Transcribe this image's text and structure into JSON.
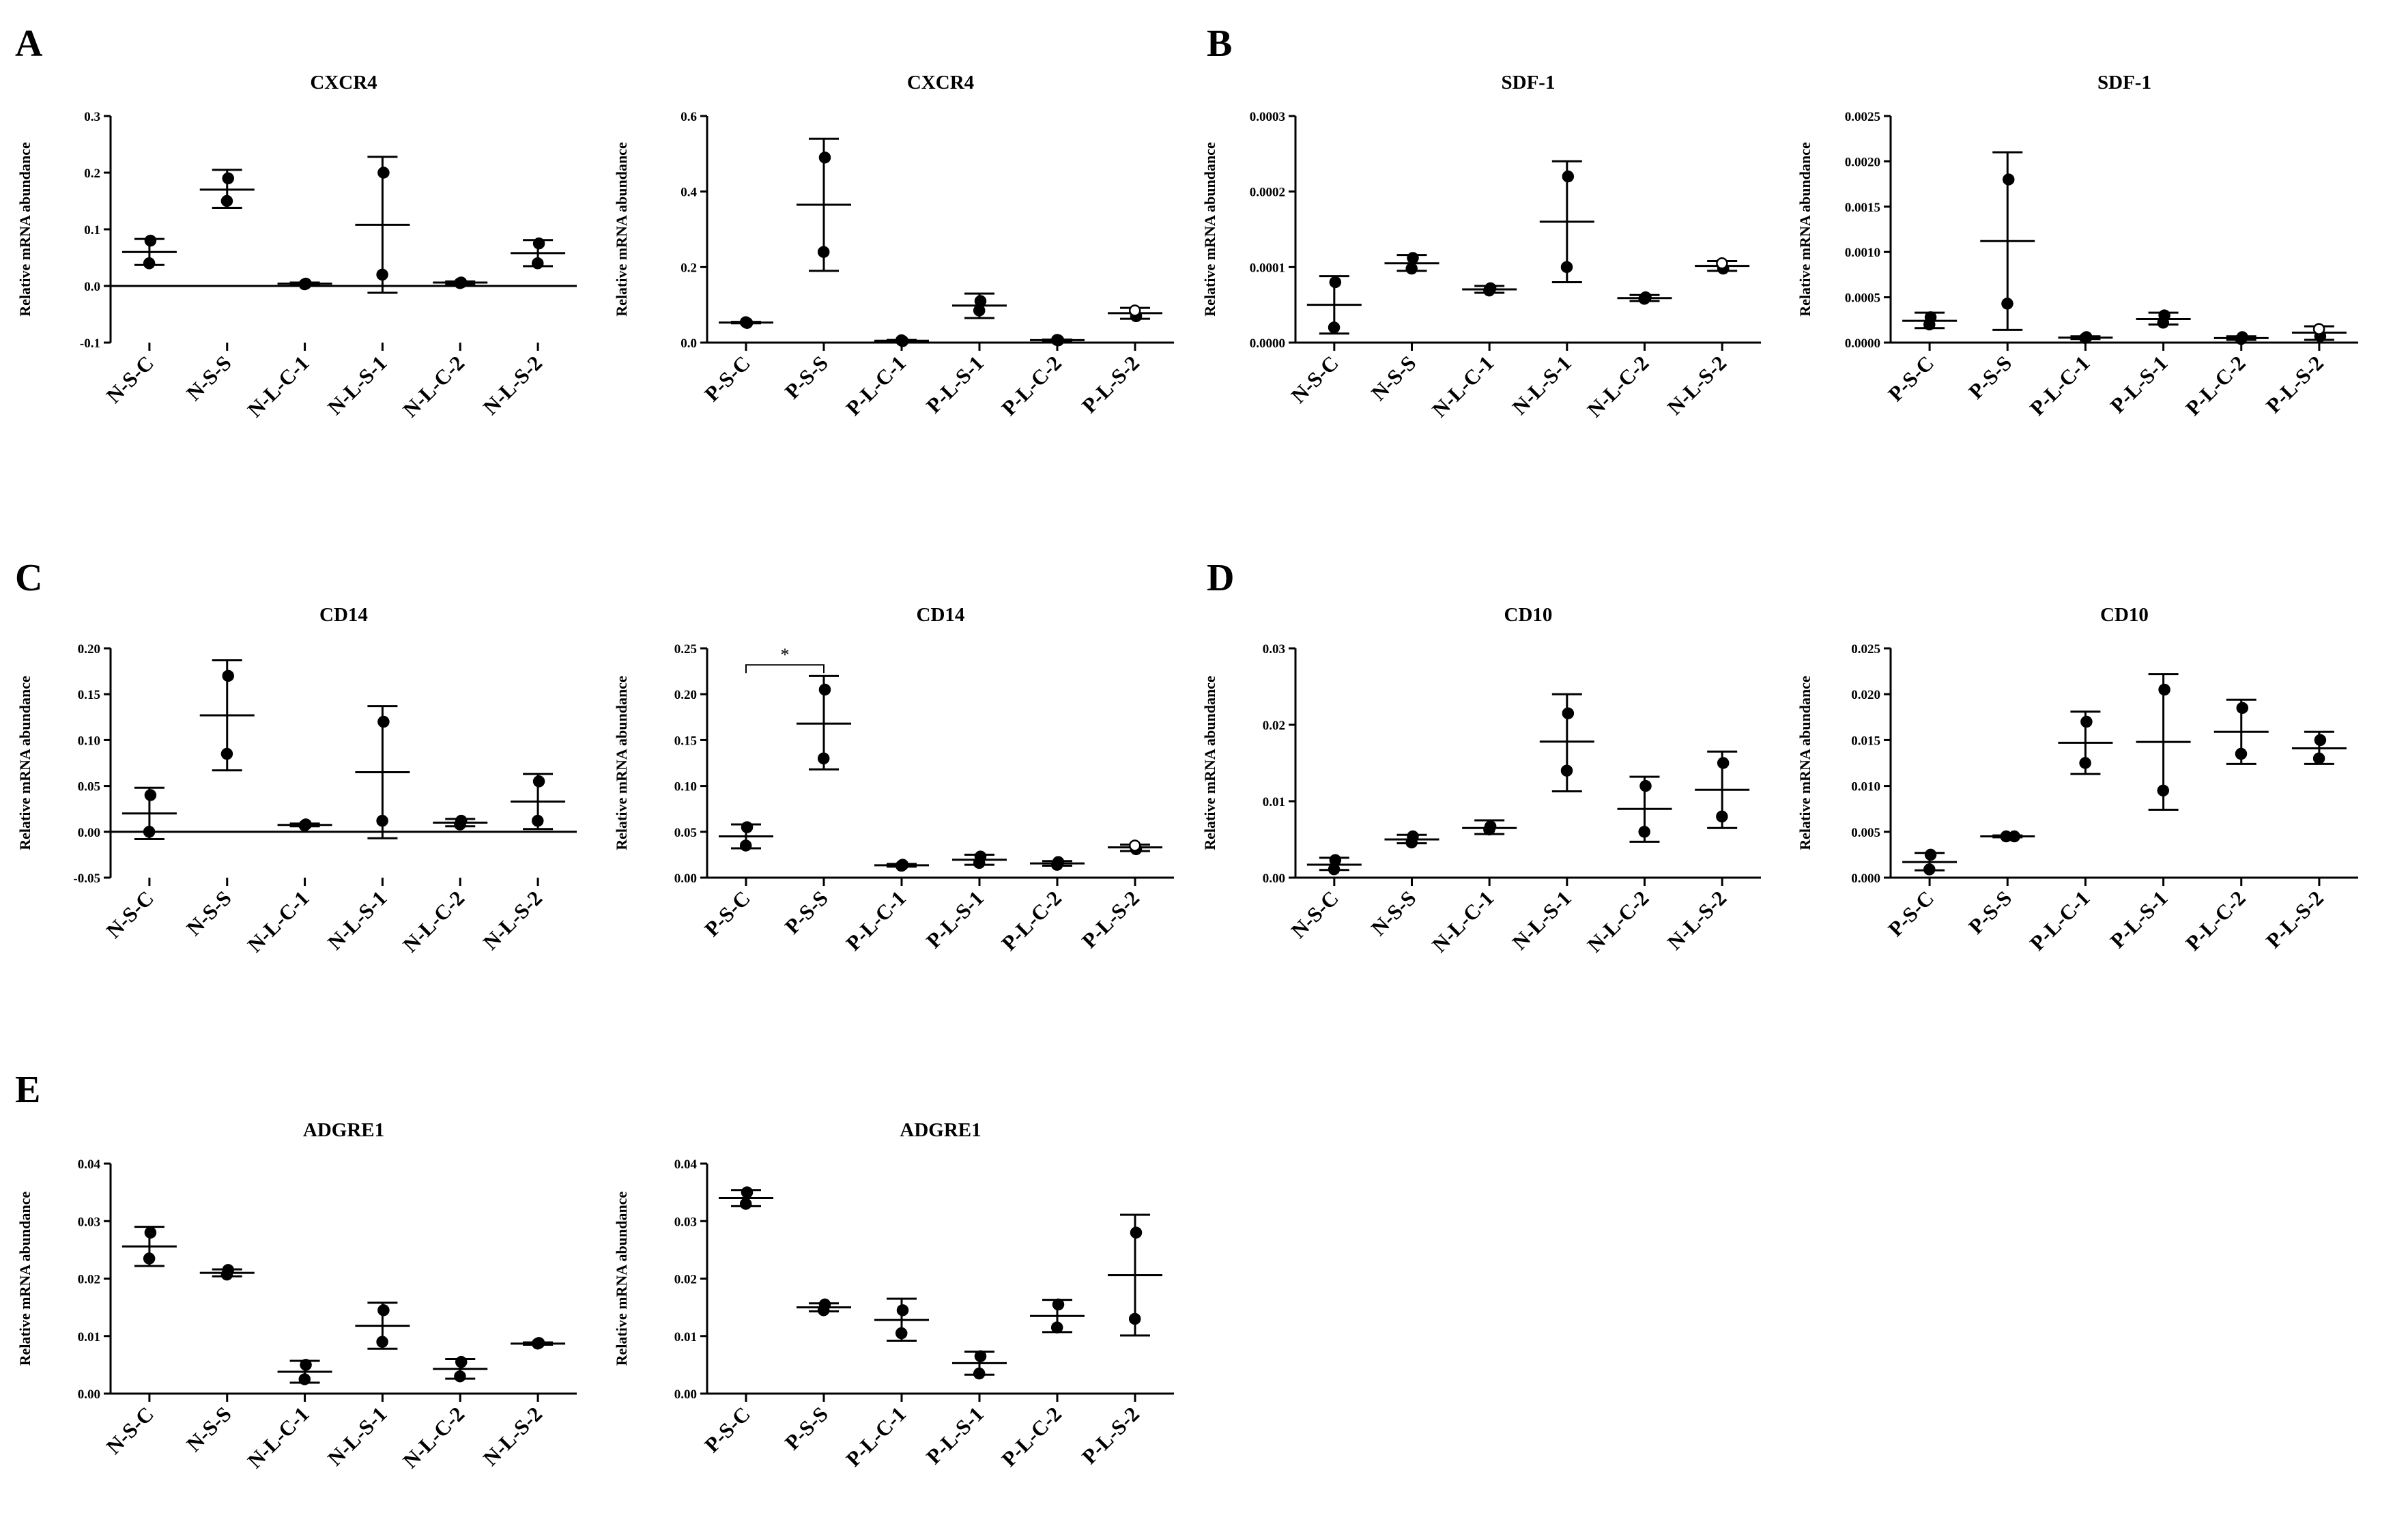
{
  "panel_letters": [
    "A",
    "B",
    "C",
    "D",
    "E"
  ],
  "chart_data": [
    {
      "type": "scatter",
      "panel": "A",
      "title": "CXCR4",
      "ylabel": "Relative mRNA abundance",
      "ylim": [
        -0.1,
        0.3
      ],
      "yticks": [
        "-0.1",
        "0.0",
        "0.1",
        "0.2",
        "0.3"
      ],
      "yticks_values": [
        -0.1,
        0.0,
        0.1,
        0.2,
        0.3
      ],
      "categories": [
        "N-S-C",
        "N-S-S",
        "N-L-C-1",
        "N-L-S-1",
        "N-L-C-2",
        "N-L-S-2"
      ],
      "points": [
        [
          0.08,
          0.04
        ],
        [
          0.19,
          0.15
        ],
        [
          0.004,
          0.003
        ],
        [
          0.2,
          0.02
        ],
        [
          0.006,
          0.005
        ],
        [
          0.075,
          0.04
        ]
      ],
      "mean": [
        0.06,
        0.17,
        0.004,
        0.108,
        0.006,
        0.058
      ],
      "error_low": [
        0.037,
        0.138,
        0.002,
        -0.012,
        0.003,
        0.035
      ],
      "error_high": [
        0.083,
        0.205,
        0.006,
        0.228,
        0.008,
        0.081
      ],
      "open_markers": [
        false,
        false,
        false,
        false,
        false,
        false
      ]
    },
    {
      "type": "scatter",
      "panel": "A",
      "title": "CXCR4",
      "ylabel": "Relative mRNA abundance",
      "ylim": [
        0,
        0.6
      ],
      "yticks": [
        "0.0",
        "0.2",
        "0.4",
        "0.6"
      ],
      "yticks_values": [
        0,
        0.2,
        0.4,
        0.6
      ],
      "categories": [
        "P-S-C",
        "P-S-S",
        "P-L-C-1",
        "P-L-S-1",
        "P-L-C-2",
        "P-L-S-2"
      ],
      "points": [
        [
          0.052,
          0.054
        ],
        [
          0.49,
          0.24
        ],
        [
          0.004,
          0.006
        ],
        [
          0.11,
          0.085
        ],
        [
          0.006,
          0.007
        ],
        [
          0.07,
          0.085
        ]
      ],
      "mean": [
        0.053,
        0.365,
        0.005,
        0.098,
        0.0065,
        0.078
      ],
      "error_low": [
        0.051,
        0.19,
        0.003,
        0.065,
        0.005,
        0.063
      ],
      "error_high": [
        0.055,
        0.54,
        0.007,
        0.13,
        0.008,
        0.092
      ],
      "open_markers": [
        false,
        false,
        false,
        false,
        false,
        true
      ]
    },
    {
      "type": "scatter",
      "panel": "B",
      "title": "SDF-1",
      "ylabel": "Relative mRNA abundance",
      "ylim": [
        0,
        0.0003
      ],
      "yticks": [
        "0.0000",
        "0.0001",
        "0.0002",
        "0.0003"
      ],
      "yticks_values": [
        0,
        0.0001,
        0.0002,
        0.0003
      ],
      "categories": [
        "N-S-C",
        "N-S-S",
        "N-L-C-1",
        "N-L-S-1",
        "N-L-C-2",
        "N-L-S-2"
      ],
      "points": [
        [
          8e-05,
          2e-05
        ],
        [
          0.000112,
          9.8e-05
        ],
        [
          7.2e-05,
          6.9e-05
        ],
        [
          0.00022,
          0.0001
        ],
        [
          6e-05,
          5.8e-05
        ],
        [
          9.8e-05,
          0.000105
        ]
      ],
      "mean": [
        5e-05,
        0.000105,
        7.05e-05,
        0.00016,
        5.9e-05,
        0.0001015
      ],
      "error_low": [
        1.2e-05,
        9.5e-05,
        6.6e-05,
        8e-05,
        5.5e-05,
        9.5e-05
      ],
      "error_high": [
        8.8e-05,
        0.000116,
        7.5e-05,
        0.00024,
        6.3e-05,
        0.000108
      ],
      "open_markers": [
        false,
        false,
        false,
        false,
        false,
        true
      ]
    },
    {
      "type": "scatter",
      "panel": "B",
      "title": "SDF-1",
      "ylabel": "Relative mRNA abundance",
      "ylim": [
        0,
        0.0025
      ],
      "yticks": [
        "0.0000",
        "0.0005",
        "0.0010",
        "0.0015",
        "0.0020",
        "0.0025"
      ],
      "yticks_values": [
        0,
        0.0005,
        0.001,
        0.0015,
        0.002,
        0.0025
      ],
      "categories": [
        "P-S-C",
        "P-S-S",
        "P-L-C-1",
        "P-L-S-1",
        "P-L-C-2",
        "P-L-S-2"
      ],
      "points": [
        [
          0.00028,
          0.0002
        ],
        [
          0.0018,
          0.00043
        ],
        [
          6e-05,
          5e-05
        ],
        [
          0.0003,
          0.00022
        ],
        [
          6e-05,
          4e-05
        ],
        [
          7e-05,
          0.00015
        ]
      ],
      "mean": [
        0.00024,
        0.00112,
        5.5e-05,
        0.00026,
        5e-05,
        0.00011
      ],
      "error_low": [
        0.00016,
        0.00014,
        4e-05,
        0.0002,
        3e-05,
        3e-05
      ],
      "error_high": [
        0.00033,
        0.0021,
        7e-05,
        0.00033,
        7e-05,
        0.00018
      ],
      "open_markers": [
        false,
        false,
        false,
        false,
        false,
        true
      ]
    },
    {
      "type": "scatter",
      "panel": "C",
      "title": "CD14",
      "ylabel": "Relative mRNA abundance",
      "ylim": [
        -0.05,
        0.2
      ],
      "yticks": [
        "-0.05",
        "0.00",
        "0.05",
        "0.10",
        "0.15",
        "0.20"
      ],
      "yticks_values": [
        -0.05,
        0,
        0.05,
        0.1,
        0.15,
        0.2
      ],
      "categories": [
        "N-S-C",
        "N-S-S",
        "N-L-C-1",
        "N-L-S-1",
        "N-L-C-2",
        "N-L-S-2"
      ],
      "points": [
        [
          0.04,
          0.0
        ],
        [
          0.17,
          0.085
        ],
        [
          0.008,
          0.007
        ],
        [
          0.12,
          0.012
        ],
        [
          0.012,
          0.008
        ],
        [
          0.055,
          0.012
        ]
      ],
      "mean": [
        0.02,
        0.127,
        0.0075,
        0.065,
        0.01,
        0.033
      ],
      "error_low": [
        -0.008,
        0.067,
        0.006,
        -0.007,
        0.006,
        0.003
      ],
      "error_high": [
        0.048,
        0.187,
        0.009,
        0.137,
        0.014,
        0.063
      ],
      "open_markers": [
        false,
        false,
        false,
        false,
        false,
        false
      ]
    },
    {
      "type": "scatter",
      "panel": "C",
      "title": "CD14",
      "ylabel": "Relative mRNA abundance",
      "ylim": [
        0,
        0.25
      ],
      "yticks": [
        "0.00",
        "0.05",
        "0.10",
        "0.15",
        "0.20",
        "0.25"
      ],
      "yticks_values": [
        0,
        0.05,
        0.1,
        0.15,
        0.2,
        0.25
      ],
      "categories": [
        "P-S-C",
        "P-S-S",
        "P-L-C-1",
        "P-L-S-1",
        "P-L-C-2",
        "P-L-S-2"
      ],
      "points": [
        [
          0.055,
          0.035
        ],
        [
          0.205,
          0.13
        ],
        [
          0.014,
          0.013
        ],
        [
          0.023,
          0.016
        ],
        [
          0.017,
          0.014
        ],
        [
          0.031,
          0.035
        ]
      ],
      "mean": [
        0.045,
        0.168,
        0.0135,
        0.0195,
        0.0155,
        0.033
      ],
      "error_low": [
        0.032,
        0.118,
        0.012,
        0.014,
        0.013,
        0.029
      ],
      "error_high": [
        0.058,
        0.22,
        0.015,
        0.025,
        0.018,
        0.036
      ],
      "open_markers": [
        false,
        false,
        false,
        false,
        false,
        true
      ],
      "significance": {
        "from": 0,
        "to": 1,
        "label": "*",
        "y": 0.232
      }
    },
    {
      "type": "scatter",
      "panel": "D",
      "title": "CD10",
      "ylabel": "Relative mRNA abundance",
      "ylim": [
        0,
        0.03
      ],
      "yticks": [
        "0.00",
        "0.01",
        "0.02",
        "0.03"
      ],
      "yticks_values": [
        0,
        0.01,
        0.02,
        0.03
      ],
      "categories": [
        "N-S-C",
        "N-S-S",
        "N-L-C-1",
        "N-L-S-1",
        "N-L-C-2",
        "N-L-S-2"
      ],
      "points": [
        [
          0.0023,
          0.0011
        ],
        [
          0.0054,
          0.0046
        ],
        [
          0.0067,
          0.0063
        ],
        [
          0.0215,
          0.014
        ],
        [
          0.012,
          0.006
        ],
        [
          0.015,
          0.008
        ]
      ],
      "mean": [
        0.0017,
        0.005,
        0.0065,
        0.0178,
        0.009,
        0.0115
      ],
      "error_low": [
        0.001,
        0.0045,
        0.0057,
        0.0113,
        0.0047,
        0.0065
      ],
      "error_high": [
        0.0026,
        0.0056,
        0.0075,
        0.024,
        0.0132,
        0.0165
      ],
      "open_markers": [
        false,
        false,
        false,
        false,
        false,
        false
      ]
    },
    {
      "type": "scatter",
      "panel": "D",
      "title": "CD10",
      "ylabel": "Relative mRNA abundance",
      "ylim": [
        0,
        0.025
      ],
      "yticks": [
        "0.000",
        "0.005",
        "0.010",
        "0.015",
        "0.020",
        "0.025"
      ],
      "yticks_values": [
        0,
        0.005,
        0.01,
        0.015,
        0.02,
        0.025
      ],
      "categories": [
        "P-S-C",
        "P-S-S",
        "P-L-C-1",
        "P-L-S-1",
        "P-L-C-2",
        "P-L-S-2"
      ],
      "points": [
        [
          0.0025,
          0.0009
        ],
        [
          0.0045,
          0.0045
        ],
        [
          0.017,
          0.0125
        ],
        [
          0.0205,
          0.0095
        ],
        [
          0.0185,
          0.0135
        ],
        [
          0.015,
          0.013
        ]
      ],
      "mean": [
        0.0017,
        0.0045,
        0.0147,
        0.0148,
        0.0159,
        0.0141
      ],
      "error_low": [
        0.0008,
        0.0044,
        0.0113,
        0.0074,
        0.0124,
        0.0124
      ],
      "error_high": [
        0.0027,
        0.0046,
        0.0181,
        0.0222,
        0.0194,
        0.0159
      ],
      "open_markers": [
        false,
        false,
        false,
        false,
        false,
        false
      ]
    },
    {
      "type": "scatter",
      "panel": "E",
      "title": "ADGRE1",
      "ylabel": "Relative mRNA abundance",
      "ylim": [
        0,
        0.04
      ],
      "yticks": [
        "0.00",
        "0.01",
        "0.02",
        "0.03",
        "0.04"
      ],
      "yticks_values": [
        0,
        0.01,
        0.02,
        0.03,
        0.04
      ],
      "categories": [
        "N-S-C",
        "N-S-S",
        "N-L-C-1",
        "N-L-S-1",
        "N-L-C-2",
        "N-L-S-2"
      ],
      "points": [
        [
          0.028,
          0.0235
        ],
        [
          0.0215,
          0.0207
        ],
        [
          0.005,
          0.0025
        ],
        [
          0.0145,
          0.009
        ],
        [
          0.0055,
          0.003
        ],
        [
          0.0088,
          0.0087
        ]
      ],
      "mean": [
        0.0256,
        0.021,
        0.0038,
        0.0118,
        0.0043,
        0.0087
      ],
      "error_low": [
        0.0222,
        0.0204,
        0.0019,
        0.0078,
        0.0026,
        0.0085
      ],
      "error_high": [
        0.029,
        0.0216,
        0.0057,
        0.0158,
        0.006,
        0.0089
      ],
      "open_markers": [
        false,
        false,
        false,
        false,
        false,
        false
      ]
    },
    {
      "type": "scatter",
      "panel": "E",
      "title": "ADGRE1",
      "ylabel": "Relative mRNA abundance",
      "ylim": [
        0,
        0.04
      ],
      "yticks": [
        "0.00",
        "0.01",
        "0.02",
        "0.03",
        "0.04"
      ],
      "yticks_values": [
        0,
        0.01,
        0.02,
        0.03,
        0.04
      ],
      "categories": [
        "P-S-C",
        "P-S-S",
        "P-L-C-1",
        "P-L-S-1",
        "P-L-C-2",
        "P-L-S-2"
      ],
      "points": [
        [
          0.035,
          0.033
        ],
        [
          0.0155,
          0.0145
        ],
        [
          0.0145,
          0.0105
        ],
        [
          0.0065,
          0.0035
        ],
        [
          0.0155,
          0.0115
        ],
        [
          0.028,
          0.013
        ]
      ],
      "mean": [
        0.034,
        0.015,
        0.0128,
        0.0053,
        0.0135,
        0.0206
      ],
      "error_low": [
        0.0326,
        0.0143,
        0.0092,
        0.0033,
        0.0107,
        0.0101
      ],
      "error_high": [
        0.0354,
        0.0157,
        0.0165,
        0.0073,
        0.0163,
        0.0311
      ],
      "open_markers": [
        false,
        false,
        false,
        false,
        false,
        false
      ]
    }
  ]
}
